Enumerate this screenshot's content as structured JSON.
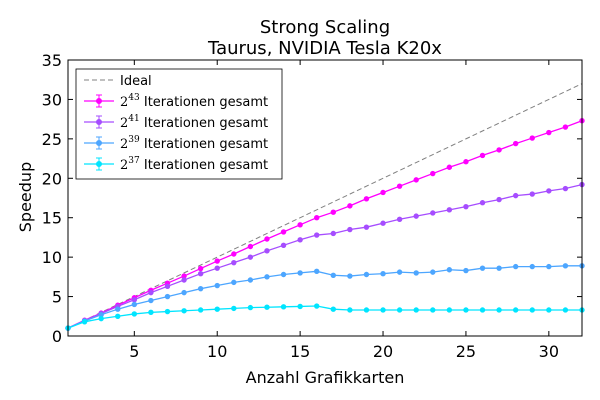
{
  "chart_data": {
    "type": "line",
    "title": "Strong Scaling",
    "subtitle": "Taurus, NVIDIA Tesla K20x",
    "xlabel": "Anzahl Grafikkarten",
    "ylabel": "Speedup",
    "xlim": [
      1,
      32
    ],
    "ylim": [
      0,
      35
    ],
    "xticks": [
      5,
      10,
      15,
      20,
      25,
      30
    ],
    "yticks": [
      0,
      5,
      10,
      15,
      20,
      25,
      30,
      35
    ],
    "grid": false,
    "legend_position": "top-left",
    "ideal": {
      "name": "Ideal",
      "color": "#808080",
      "x": [
        1,
        32
      ],
      "values": [
        1,
        32
      ]
    },
    "series": [
      {
        "name_base": "2",
        "name_exp": "43",
        "name_suffix": " Iterationen gesamt",
        "color": "#ff00ff",
        "x": [
          1,
          2,
          3,
          4,
          5,
          6,
          7,
          8,
          9,
          10,
          11,
          12,
          13,
          14,
          15,
          16,
          17,
          18,
          19,
          20,
          21,
          22,
          23,
          24,
          25,
          26,
          27,
          28,
          29,
          30,
          31,
          32
        ],
        "values": [
          1.0,
          2.0,
          2.9,
          3.9,
          4.85,
          5.8,
          6.7,
          7.6,
          8.55,
          9.5,
          10.4,
          11.35,
          12.3,
          13.2,
          14.1,
          15.0,
          15.7,
          16.5,
          17.4,
          18.2,
          19.0,
          19.8,
          20.6,
          21.4,
          22.1,
          22.9,
          23.6,
          24.4,
          25.1,
          25.8,
          26.5,
          27.3
        ]
      },
      {
        "name_base": "2",
        "name_exp": "41",
        "name_suffix": " Iterationen gesamt",
        "color": "#a64dff",
        "x": [
          1,
          2,
          3,
          4,
          5,
          6,
          7,
          8,
          9,
          10,
          11,
          12,
          13,
          14,
          15,
          16,
          17,
          18,
          19,
          20,
          21,
          22,
          23,
          24,
          25,
          26,
          27,
          28,
          29,
          30,
          31,
          32
        ],
        "values": [
          1.0,
          1.95,
          2.85,
          3.75,
          4.6,
          5.5,
          6.3,
          7.1,
          7.9,
          8.6,
          9.3,
          10.0,
          10.8,
          11.5,
          12.2,
          12.8,
          13.0,
          13.5,
          13.8,
          14.3,
          14.8,
          15.2,
          15.6,
          16.0,
          16.4,
          16.9,
          17.3,
          17.8,
          18.0,
          18.4,
          18.7,
          19.2
        ]
      },
      {
        "name_base": "2",
        "name_exp": "39",
        "name_suffix": " Iterationen gesamt",
        "color": "#4da6ff",
        "x": [
          1,
          2,
          3,
          4,
          5,
          6,
          7,
          8,
          9,
          10,
          11,
          12,
          13,
          14,
          15,
          16,
          17,
          18,
          19,
          20,
          21,
          22,
          23,
          24,
          25,
          26,
          27,
          28,
          29,
          30,
          31,
          32
        ],
        "values": [
          1.0,
          1.9,
          2.7,
          3.4,
          4.0,
          4.5,
          5.0,
          5.5,
          6.0,
          6.4,
          6.8,
          7.1,
          7.5,
          7.8,
          8.0,
          8.2,
          7.7,
          7.6,
          7.8,
          7.9,
          8.1,
          8.0,
          8.1,
          8.4,
          8.3,
          8.6,
          8.6,
          8.8,
          8.8,
          8.8,
          8.9,
          8.9
        ]
      },
      {
        "name_base": "2",
        "name_exp": "37",
        "name_suffix": " Iterationen gesamt",
        "color": "#00e5ff",
        "x": [
          1,
          2,
          3,
          4,
          5,
          6,
          7,
          8,
          9,
          10,
          11,
          12,
          13,
          14,
          15,
          16,
          17,
          18,
          19,
          20,
          21,
          22,
          23,
          24,
          25,
          26,
          27,
          28,
          29,
          30,
          31,
          32
        ],
        "values": [
          1.0,
          1.8,
          2.2,
          2.5,
          2.8,
          3.0,
          3.1,
          3.2,
          3.3,
          3.4,
          3.5,
          3.6,
          3.65,
          3.7,
          3.75,
          3.8,
          3.4,
          3.3,
          3.3,
          3.3,
          3.3,
          3.3,
          3.3,
          3.3,
          3.3,
          3.3,
          3.3,
          3.3,
          3.3,
          3.3,
          3.3,
          3.3
        ]
      }
    ]
  }
}
